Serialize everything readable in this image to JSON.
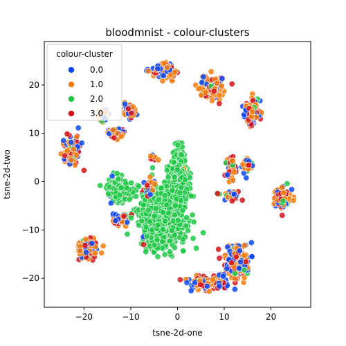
{
  "chart_data": {
    "type": "scatter",
    "title": "bloodmnist - colour-clusters",
    "xlabel": "tsne-2d-one",
    "ylabel": "tsne-2d-two",
    "xlim": [
      -28.5,
      28.5
    ],
    "ylim": [
      -26,
      29
    ],
    "xticks": [
      -20,
      -10,
      0,
      10,
      20
    ],
    "yticks": [
      -20,
      -10,
      0,
      10,
      20
    ],
    "grid": false,
    "legend": {
      "title": "colour-cluster",
      "placement": "top-left",
      "entries": [
        {
          "label": "0.0",
          "color": "#0d47f5"
        },
        {
          "label": "1.0",
          "color": "#f57c0d"
        },
        {
          "label": "2.0",
          "color": "#1fc845"
        },
        {
          "label": "3.0",
          "color": "#d6121a"
        }
      ]
    },
    "series": [
      {
        "name": "0.0",
        "color": "#0d47f5"
      },
      {
        "name": "1.0",
        "color": "#f57c0d"
      },
      {
        "name": "2.0",
        "color": "#1fc845"
      },
      {
        "name": "3.0",
        "color": "#d6121a"
      }
    ],
    "clusters": [
      {
        "center": [
          -3.5,
          -7.5
        ],
        "spread": [
          4.0,
          5.5
        ],
        "count": 950,
        "mix": [
          0.01,
          0.005,
          0.98,
          0.005
        ]
      },
      {
        "center": [
          0.2,
          0.5
        ],
        "spread": [
          1.8,
          5.0
        ],
        "count": 420,
        "mix": [
          0.01,
          0.01,
          0.97,
          0.01
        ]
      },
      {
        "center": [
          -12.5,
          -1.5
        ],
        "spread": [
          2.2,
          2.2
        ],
        "count": 240,
        "mix": [
          0.02,
          0.02,
          0.94,
          0.02
        ]
      },
      {
        "center": [
          -3.0,
          23.0
        ],
        "spread": [
          2.3,
          1.6
        ],
        "count": 130,
        "mix": [
          0.28,
          0.42,
          0.05,
          0.25
        ]
      },
      {
        "center": [
          7.5,
          19.5
        ],
        "spread": [
          2.5,
          2.0
        ],
        "count": 130,
        "mix": [
          0.28,
          0.42,
          0.05,
          0.25
        ]
      },
      {
        "center": [
          16.0,
          14.5
        ],
        "spread": [
          1.5,
          2.3
        ],
        "count": 110,
        "mix": [
          0.28,
          0.42,
          0.05,
          0.25
        ]
      },
      {
        "center": [
          -10.5,
          14.5
        ],
        "spread": [
          1.2,
          1.3
        ],
        "count": 45,
        "mix": [
          0.25,
          0.45,
          0.05,
          0.25
        ]
      },
      {
        "center": [
          -16.0,
          13.5
        ],
        "spread": [
          1.0,
          1.1
        ],
        "count": 30,
        "mix": [
          0.35,
          0.45,
          0.05,
          0.15
        ]
      },
      {
        "center": [
          -13.0,
          10.0
        ],
        "spread": [
          1.6,
          1.0
        ],
        "count": 45,
        "mix": [
          0.25,
          0.45,
          0.05,
          0.25
        ]
      },
      {
        "center": [
          -22.5,
          6.5
        ],
        "spread": [
          1.6,
          2.8
        ],
        "count": 120,
        "mix": [
          0.28,
          0.42,
          0.05,
          0.25
        ]
      },
      {
        "center": [
          -6.0,
          -1.5
        ],
        "spread": [
          1.1,
          1.4
        ],
        "count": 45,
        "mix": [
          0.3,
          0.3,
          0.1,
          0.3
        ]
      },
      {
        "center": [
          -5.5,
          4.8
        ],
        "spread": [
          1.0,
          0.6
        ],
        "count": 10,
        "mix": [
          0.2,
          0.4,
          0.1,
          0.3
        ]
      },
      {
        "center": [
          -12.0,
          -8.0
        ],
        "spread": [
          1.6,
          1.2
        ],
        "count": 45,
        "mix": [
          0.25,
          0.4,
          0.1,
          0.25
        ]
      },
      {
        "center": [
          -19.5,
          -14.0
        ],
        "spread": [
          2.0,
          2.0
        ],
        "count": 110,
        "mix": [
          0.28,
          0.42,
          0.05,
          0.25
        ]
      },
      {
        "center": [
          11.5,
          2.5
        ],
        "spread": [
          1.2,
          2.2
        ],
        "count": 50,
        "mix": [
          0.3,
          0.3,
          0.1,
          0.3
        ]
      },
      {
        "center": [
          15.0,
          3.5
        ],
        "spread": [
          1.0,
          1.6
        ],
        "count": 35,
        "mix": [
          0.2,
          0.55,
          0.05,
          0.2
        ]
      },
      {
        "center": [
          11.5,
          -3.0
        ],
        "spread": [
          1.5,
          1.0
        ],
        "count": 35,
        "mix": [
          0.35,
          0.3,
          0.05,
          0.3
        ]
      },
      {
        "center": [
          8.5,
          -2.5
        ],
        "spread": [
          0.5,
          0.3
        ],
        "count": 4,
        "mix": [
          0.2,
          0.1,
          0.5,
          0.2
        ]
      },
      {
        "center": [
          22.5,
          -3.5
        ],
        "spread": [
          1.6,
          2.0
        ],
        "count": 80,
        "mix": [
          0.28,
          0.42,
          0.05,
          0.25
        ]
      },
      {
        "center": [
          12.5,
          -16.5
        ],
        "spread": [
          2.5,
          3.0
        ],
        "count": 220,
        "mix": [
          0.28,
          0.42,
          0.05,
          0.25
        ]
      },
      {
        "center": [
          6.5,
          -21.0
        ],
        "spread": [
          3.5,
          1.3
        ],
        "count": 140,
        "mix": [
          0.28,
          0.42,
          0.05,
          0.25
        ]
      }
    ]
  }
}
